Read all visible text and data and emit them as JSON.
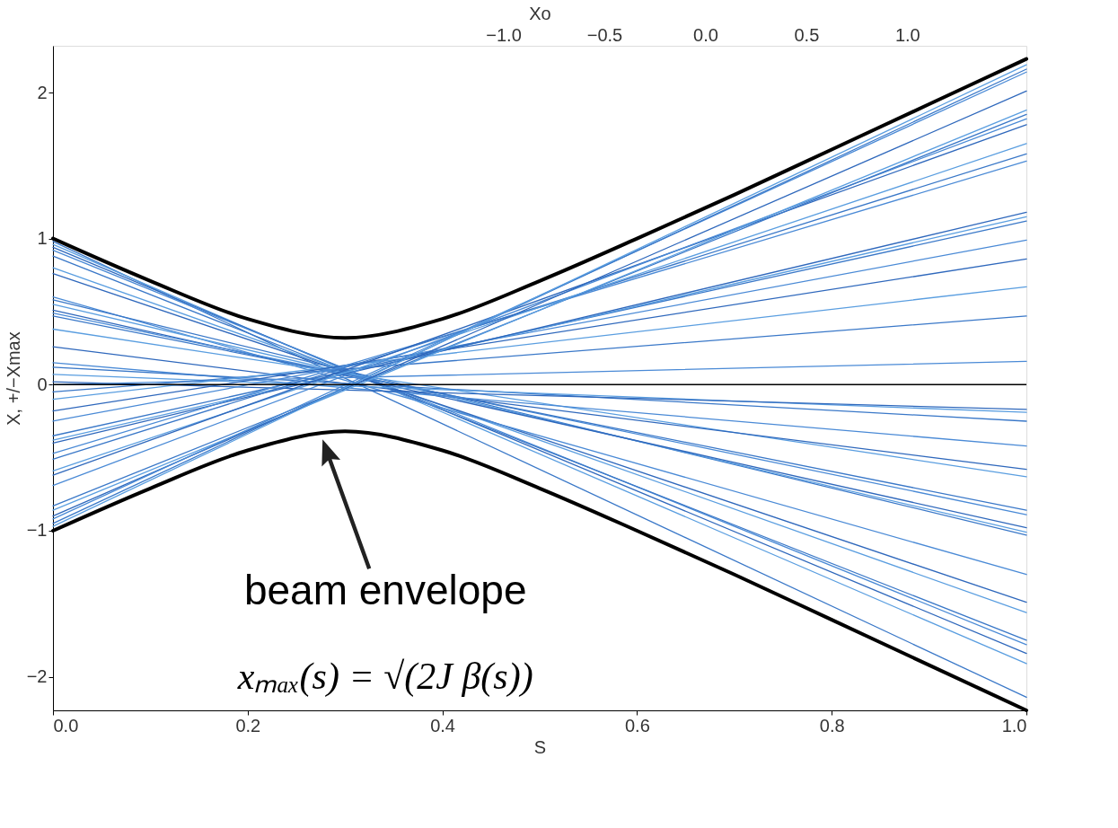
{
  "chart_data": {
    "type": "line",
    "xlabel": "S",
    "ylabel": "X, +/−Xmax",
    "x2label": "Xo",
    "xlim": [
      0,
      1.0
    ],
    "xticks": [
      {
        "value": 0,
        "label": "0.0"
      },
      {
        "value": 0.2,
        "label": "0.2"
      },
      {
        "value": 0.4,
        "label": "0.4"
      },
      {
        "value": 0.6,
        "label": "0.6"
      },
      {
        "value": 0.8,
        "label": "0.8"
      },
      {
        "value": 1.0,
        "label": "1.0"
      }
    ],
    "ylim": [
      -2.23,
      2.32
    ],
    "yticks": [
      {
        "value": -2,
        "label": "−2"
      },
      {
        "value": -1,
        "label": "−1"
      },
      0,
      1,
      2
    ],
    "x2lim": [
      -3.23,
      1.59
    ],
    "x2ticks": [
      {
        "value": -1,
        "label": "−1.0"
      },
      {
        "value": -0.5,
        "label": "−0.5"
      },
      {
        "value": 0,
        "label": "0.0"
      },
      {
        "value": 0.5,
        "label": "0.5"
      },
      {
        "value": 1,
        "label": "1.0"
      }
    ],
    "grid": false,
    "legend": false,
    "marker": "none",
    "line_style": "solid",
    "ref_lines": [
      {
        "axis": "y",
        "value": 0,
        "color": "#000000"
      }
    ],
    "annotations": [
      "beam envelope",
      "xₘₐₓ(s) = √(2J β(s))"
    ],
    "series": [
      {
        "color": "#000000",
        "x": [
          0,
          0.1,
          0.2,
          0.3,
          0.4,
          0.5,
          0.6,
          0.7,
          0.8,
          0.9,
          1.0
        ],
        "values": [
          1.0,
          0.71,
          0.45,
          0.32,
          0.45,
          0.71,
          1.0,
          1.3,
          1.61,
          1.92,
          2.23
        ]
      },
      {
        "color": "#000000",
        "x": [
          0,
          0.1,
          0.2,
          0.3,
          0.4,
          0.5,
          0.6,
          0.7,
          0.8,
          0.9,
          1.0
        ],
        "values": [
          -1.0,
          -0.71,
          -0.45,
          -0.32,
          -0.45,
          -0.71,
          -1.0,
          -1.3,
          -1.61,
          -1.92,
          -2.23
        ]
      },
      {
        "color": "#3a78c8",
        "x": [
          0,
          1.0
        ],
        "values": [
          0.98,
          -2.14
        ]
      },
      {
        "color": "#5a9ee0",
        "x": [
          0,
          1.0
        ],
        "values": [
          0.96,
          -1.91
        ]
      },
      {
        "color": "#2f68bc",
        "x": [
          0,
          1.0
        ],
        "values": [
          0.94,
          -1.84
        ]
      },
      {
        "color": "#4a8ad6",
        "x": [
          0,
          1.0
        ],
        "values": [
          0.92,
          -1.78
        ]
      },
      {
        "color": "#3a78c8",
        "x": [
          0,
          1.0
        ],
        "values": [
          0.88,
          -1.75
        ]
      },
      {
        "color": "#5a9ee0",
        "x": [
          0,
          1.0
        ],
        "values": [
          0.8,
          -1.56
        ]
      },
      {
        "color": "#2f68bc",
        "x": [
          0,
          1.0
        ],
        "values": [
          0.76,
          -1.49
        ]
      },
      {
        "color": "#4a8ad6",
        "x": [
          0,
          1.0
        ],
        "values": [
          0.6,
          -1.3
        ]
      },
      {
        "color": "#3a78c8",
        "x": [
          0,
          1.0
        ],
        "values": [
          0.58,
          -1.03
        ]
      },
      {
        "color": "#5a9ee0",
        "x": [
          0,
          1.0
        ],
        "values": [
          0.55,
          -1.01
        ]
      },
      {
        "color": "#2f68bc",
        "x": [
          0,
          1.0
        ],
        "values": [
          0.51,
          -0.98
        ]
      },
      {
        "color": "#4a8ad6",
        "x": [
          0,
          1.0
        ],
        "values": [
          0.49,
          -0.89
        ]
      },
      {
        "color": "#3a78c8",
        "x": [
          0,
          1.0
        ],
        "values": [
          0.47,
          -0.86
        ]
      },
      {
        "color": "#5a9ee0",
        "x": [
          0,
          1.0
        ],
        "values": [
          0.38,
          -0.63
        ]
      },
      {
        "color": "#2f68bc",
        "x": [
          0,
          1.0
        ],
        "values": [
          0.26,
          -0.58
        ]
      },
      {
        "color": "#4a8ad6",
        "x": [
          0,
          1.0
        ],
        "values": [
          0.15,
          -0.42
        ]
      },
      {
        "color": "#3a78c8",
        "x": [
          0,
          1.0
        ],
        "values": [
          0.12,
          -0.25
        ]
      },
      {
        "color": "#5a9ee0",
        "x": [
          0,
          1.0
        ],
        "values": [
          0.07,
          -0.19
        ]
      },
      {
        "color": "#2f68bc",
        "x": [
          0,
          1.0
        ],
        "values": [
          0.02,
          -0.17
        ]
      },
      {
        "color": "#4a8ad6",
        "x": [
          0,
          1.0
        ],
        "values": [
          0.0,
          0.16
        ]
      },
      {
        "color": "#3a78c8",
        "x": [
          0,
          1.0
        ],
        "values": [
          -0.05,
          0.47
        ]
      },
      {
        "color": "#5a9ee0",
        "x": [
          0,
          1.0
        ],
        "values": [
          -0.1,
          0.67
        ]
      },
      {
        "color": "#2f68bc",
        "x": [
          0,
          1.0
        ],
        "values": [
          -0.18,
          0.86
        ]
      },
      {
        "color": "#4a8ad6",
        "x": [
          0,
          1.0
        ],
        "values": [
          -0.25,
          0.99
        ]
      },
      {
        "color": "#3a78c8",
        "x": [
          0,
          1.0
        ],
        "values": [
          -0.35,
          1.12
        ]
      },
      {
        "color": "#5a9ee0",
        "x": [
          0,
          1.0
        ],
        "values": [
          -0.38,
          1.15
        ]
      },
      {
        "color": "#2f68bc",
        "x": [
          0,
          1.0
        ],
        "values": [
          -0.4,
          1.18
        ]
      },
      {
        "color": "#4a8ad6",
        "x": [
          0,
          1.0
        ],
        "values": [
          -0.47,
          1.53
        ]
      },
      {
        "color": "#3a78c8",
        "x": [
          0,
          1.0
        ],
        "values": [
          -0.51,
          1.58
        ]
      },
      {
        "color": "#5a9ee0",
        "x": [
          0,
          1.0
        ],
        "values": [
          -0.59,
          1.65
        ]
      },
      {
        "color": "#2f68bc",
        "x": [
          0,
          1.0
        ],
        "values": [
          -0.62,
          1.78
        ]
      },
      {
        "color": "#4a8ad6",
        "x": [
          0,
          1.0
        ],
        "values": [
          -0.69,
          1.82
        ]
      },
      {
        "color": "#3a78c8",
        "x": [
          0,
          1.0
        ],
        "values": [
          -0.83,
          1.85
        ]
      },
      {
        "color": "#5a9ee0",
        "x": [
          0,
          1.0
        ],
        "values": [
          -0.86,
          1.88
        ]
      },
      {
        "color": "#2f68bc",
        "x": [
          0,
          1.0
        ],
        "values": [
          -0.9,
          2.01
        ]
      },
      {
        "color": "#4a8ad6",
        "x": [
          0,
          1.0
        ],
        "values": [
          -0.92,
          2.14
        ]
      },
      {
        "color": "#3a78c8",
        "x": [
          0,
          1.0
        ],
        "values": [
          -0.95,
          2.16
        ]
      },
      {
        "color": "#5a9ee0",
        "x": [
          0,
          1.0
        ],
        "values": [
          -0.97,
          2.19
        ]
      }
    ]
  }
}
